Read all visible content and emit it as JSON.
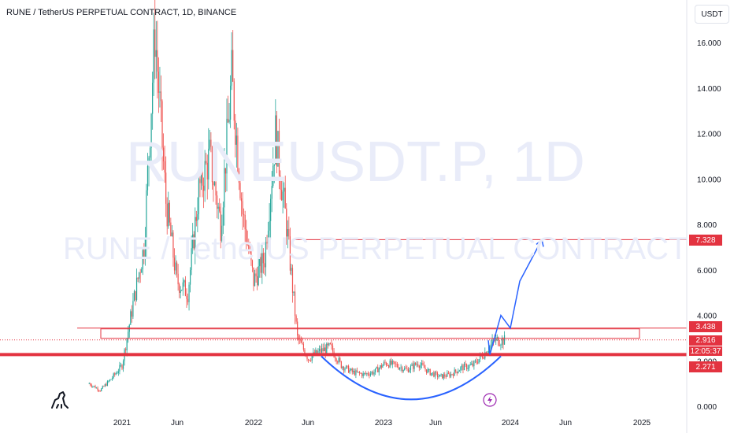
{
  "header": {
    "title": "RUNE / TetherUS PERPETUAL CONTRACT, 1D, BINANCE",
    "unit_button": "USDT"
  },
  "watermark": {
    "symbol": "RUNEUSDT.P, 1D",
    "description": "RUNE / TetherUS PERPETUAL CONTRACT"
  },
  "price_labels": {
    "target": "7.328",
    "resistance": "3.438",
    "last": "2.916",
    "countdown": "12:05:37",
    "support": "2.271"
  },
  "colors": {
    "up": "#26a69a",
    "down": "#ef5350",
    "level": "#e33340",
    "projection": "#2962ff",
    "arc": "#2962ff",
    "text": "#131722"
  },
  "chart_data": {
    "type": "line",
    "title": "RUNE / TetherUS PERPETUAL CONTRACT, 1D, BINANCE",
    "series": [
      {
        "name": "price",
        "x": [
          "2020-10",
          "2020-11",
          "2020-12",
          "2021-01",
          "2021-02",
          "2021-03",
          "2021-04",
          "2021-05",
          "2021-06",
          "2021-07",
          "2021-08",
          "2021-09",
          "2021-10",
          "2021-11",
          "2021-12",
          "2022-01",
          "2022-02",
          "2022-03",
          "2022-04",
          "2022-05",
          "2022-06",
          "2022-07",
          "2022-08",
          "2022-09",
          "2022-10",
          "2022-11",
          "2022-12",
          "2023-01",
          "2023-02",
          "2023-03",
          "2023-04",
          "2023-05",
          "2023-06",
          "2023-07",
          "2023-08",
          "2023-09",
          "2023-10",
          "2023-11",
          "2023-12"
        ],
        "y": [
          1.0,
          0.7,
          1.2,
          1.8,
          4.5,
          7.0,
          16.5,
          9.0,
          5.5,
          5.0,
          9.5,
          11.0,
          8.0,
          14.5,
          8.5,
          5.5,
          6.5,
          12.0,
          8.0,
          3.0,
          2.1,
          2.4,
          2.6,
          1.8,
          1.5,
          1.4,
          1.5,
          1.9,
          1.8,
          1.6,
          1.9,
          1.5,
          1.3,
          1.4,
          1.7,
          1.8,
          2.3,
          2.9,
          2.9
        ]
      }
    ],
    "projection": {
      "x": [
        "2023-12",
        "2024-01",
        "2024-02",
        "2024-02",
        "2024-03"
      ],
      "y": [
        2.271,
        4.0,
        3.438,
        5.5,
        7.328
      ]
    },
    "levels": [
      7.328,
      3.438,
      2.916,
      2.271
    ],
    "x_ticks": [
      "2021",
      "Jun",
      "2022",
      "Jun",
      "2023",
      "Jun",
      "2024",
      "Jun",
      "2025"
    ],
    "y_ticks": [
      "0.000",
      "2.000",
      "4.000",
      "6.000",
      "8.000",
      "10.000",
      "12.000",
      "14.000",
      "16.000"
    ],
    "ylim": [
      0,
      17.5
    ],
    "grid": false,
    "legend": "none"
  }
}
